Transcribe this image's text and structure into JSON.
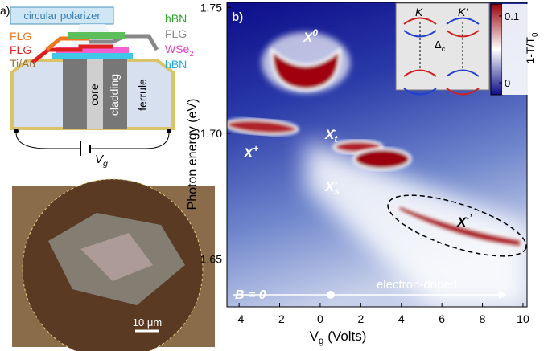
{
  "panel_a": {
    "label": "a)",
    "polarizer": "circular polarizer",
    "layers_right": [
      {
        "text": "hBN"
      },
      {
        "text": "FLG"
      },
      {
        "text": "WSe",
        "sub": "2"
      },
      {
        "text": "hBN"
      }
    ],
    "layers_left": [
      "FLG",
      "FLG",
      "Ti/Au"
    ],
    "fiber": [
      "core",
      "cladding",
      "ferrule"
    ],
    "gate": {
      "text": "V",
      "sub": "g"
    },
    "scale_bar": "10 μm"
  },
  "chart_data": {
    "type": "heatmap",
    "panel_label": "b)",
    "x_label": {
      "text": "V",
      "sub": "g",
      "rest": " (Volts)"
    },
    "y_label": "Photon energy (eV)",
    "xlim": [
      -4.6,
      10.2
    ],
    "xticks": [
      -4,
      -2,
      0,
      2,
      4,
      6,
      8,
      10
    ],
    "ylim": [
      1.631,
      1.752
    ],
    "yticks": [
      {
        "value": 1.75,
        "label": "1.75"
      },
      {
        "value": 1.7,
        "label": "1.70"
      },
      {
        "value": 1.65,
        "label": "1.65"
      }
    ],
    "colorbar": {
      "label": {
        "text": "1-T/T",
        "sub": "0"
      },
      "lim": [
        -0.018,
        0.118
      ],
      "ticks": [
        0,
        0.1
      ],
      "colors": [
        "#0c0c8a",
        "#ffffff",
        "#9a0008"
      ]
    },
    "annotations": [
      {
        "text": "X",
        "sup": "0"
      },
      {
        "text": "X",
        "sup": "+"
      },
      {
        "text": "X",
        "sub": "t",
        "sup": "-"
      },
      {
        "text": "X",
        "sub": "s",
        "sup": "-"
      },
      {
        "text": "X",
        "sup": "-’"
      }
    ],
    "field": "B = 0",
    "doping": "electron-doped",
    "inset": {
      "valleys": [
        "K",
        "K’"
      ],
      "splitting": {
        "text": "Δ",
        "sub": "c"
      }
    }
  }
}
